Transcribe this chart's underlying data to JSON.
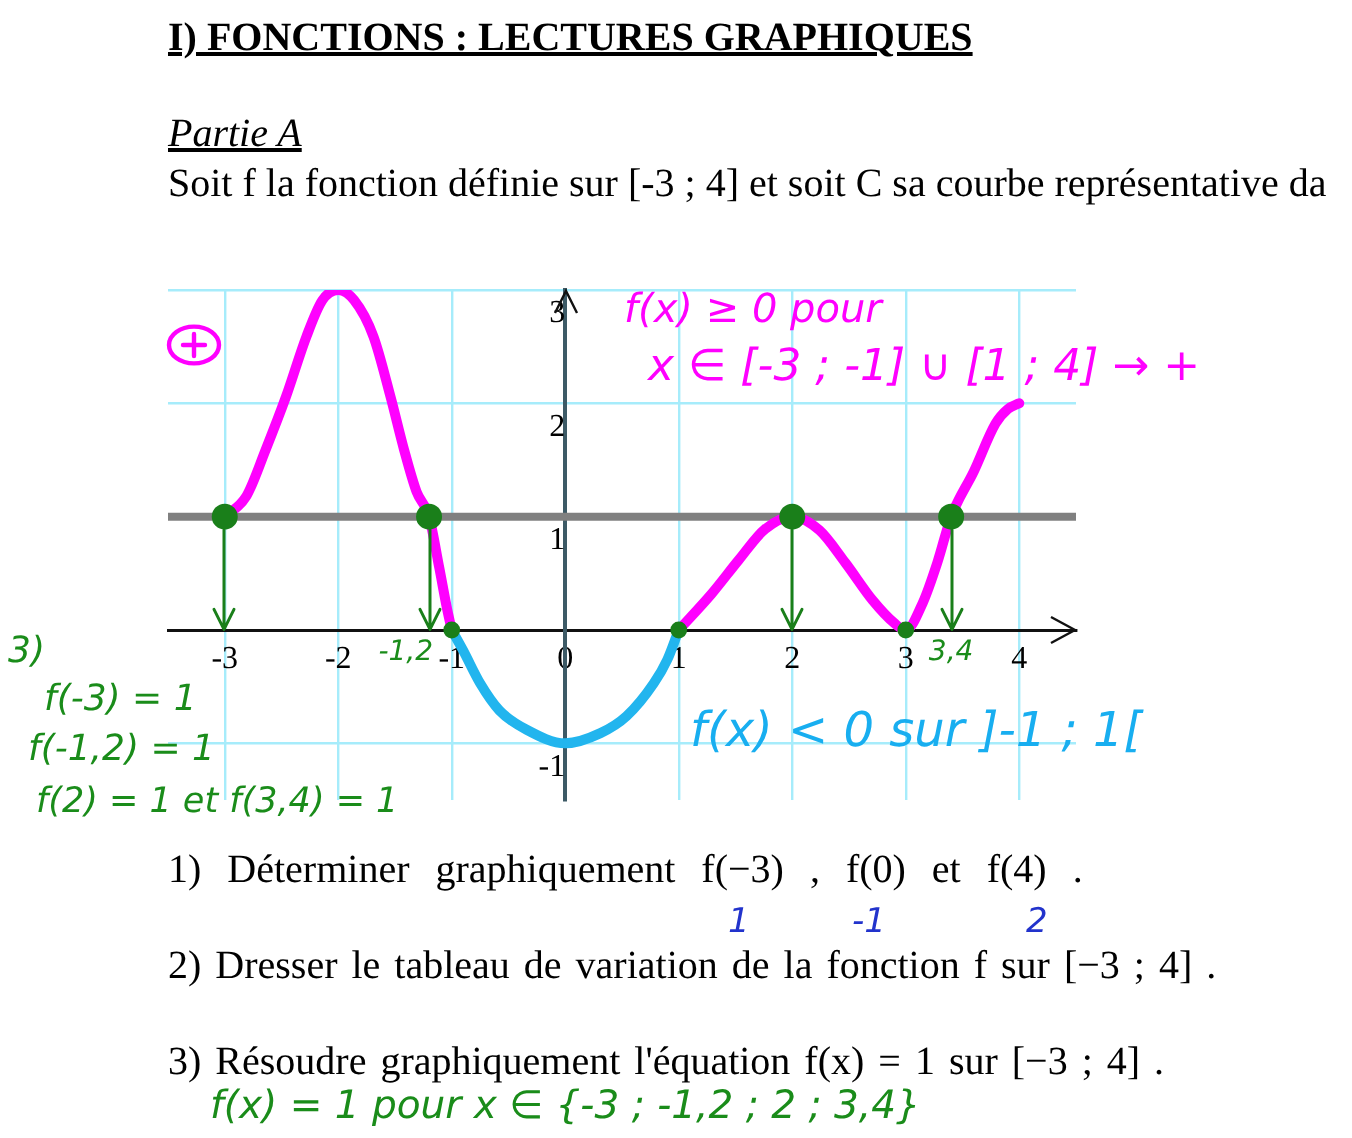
{
  "chart_data": {
    "type": "line",
    "title": "I) FONCTIONS : LECTURES GRAPHIQUES",
    "subtitle": "Partie A",
    "xlim": [
      -3.5,
      4.5
    ],
    "ylim": [
      -1.5,
      3
    ],
    "xticks": [
      -3,
      -2,
      -1,
      0,
      1,
      2,
      3,
      4
    ],
    "yticks": [
      -1,
      1,
      2,
      3
    ],
    "grid": true,
    "legend": false,
    "line_style": "solid",
    "ref_lines": [
      {
        "axis": "y",
        "value": 1,
        "color": "#808080"
      }
    ],
    "series": [
      {
        "type": "line",
        "color": "#ff00ff",
        "marker": "none",
        "x": [
          -3,
          -2.81,
          -2.64,
          -2.46,
          -2.28,
          -2.14,
          -2,
          -1.86,
          -1.69,
          -1.54,
          -1.42,
          -1.31,
          -1.2,
          -1.11,
          -1.04,
          -1,
          0,
          1,
          1.29,
          1.53,
          1.76,
          2,
          2.24,
          2.47,
          2.71,
          2.9,
          3,
          3.15,
          3.28,
          3.4,
          3.6,
          3.79,
          3.9,
          4
        ],
        "values": [
          1,
          1.18,
          1.59,
          2.06,
          2.59,
          2.91,
          3,
          2.91,
          2.59,
          2.06,
          1.59,
          1.22,
          1,
          0.55,
          0.18,
          0,
          null,
          0,
          0.32,
          0.62,
          0.89,
          1,
          0.88,
          0.59,
          0.26,
          0.06,
          0,
          0.24,
          0.6,
          1,
          1.4,
          1.82,
          1.95,
          2
        ]
      },
      {
        "type": "line",
        "color": "#22b5ee",
        "marker": "none",
        "x": [
          -1,
          -0.9,
          -0.75,
          -0.58,
          -0.34,
          0,
          0.31,
          0.54,
          0.78,
          0.9,
          1
        ],
        "values": [
          0,
          -0.18,
          -0.47,
          -0.71,
          -0.88,
          -1,
          -0.91,
          -0.76,
          -0.47,
          -0.26,
          0
        ]
      },
      {
        "type": "scatter",
        "color": "#1a7f1a",
        "marker": "circle",
        "x": [
          -3,
          -1.2,
          2,
          3.4
        ],
        "values": [
          1,
          1,
          1,
          1
        ]
      },
      {
        "type": "scatter",
        "color": "#1a7f1a",
        "marker": "circle",
        "x": [
          -1,
          1,
          3
        ],
        "values": [
          0,
          0,
          0
        ]
      }
    ],
    "annotations": [
      "Soit f la fonction définie sur [-3 ; 4] et soit C sa courbe représentative da",
      "f(x) ≥ 0 pour",
      "x ∈ [-3 ; -1] ∪ [1 ; 4] → +",
      "f(x) < 0 sur ]-1 ; 1[",
      {
        "text": "-1,2",
        "x": -1.2,
        "y": 1
      },
      {
        "text": "3,4",
        "x": 3.4,
        "y": 1
      },
      "3)",
      "f(-3) = 1",
      "f(-1,2) = 1",
      "f(2) = 1 et f(3,4) = 1",
      "1) Déterminer graphiquement f(−3) , f(0) et f(4) .",
      "1",
      "-1",
      "2",
      "2) Dresser le tableau de variation de la fonction f sur [−3 ; 4] .",
      "3) Résoudre graphiquement l'équation f(x) = 1 sur [−3 ; 4] .",
      "f(x) = 1 pour x ∈ {-3 ; -1,2 ; 2 ; 3,4}"
    ]
  }
}
